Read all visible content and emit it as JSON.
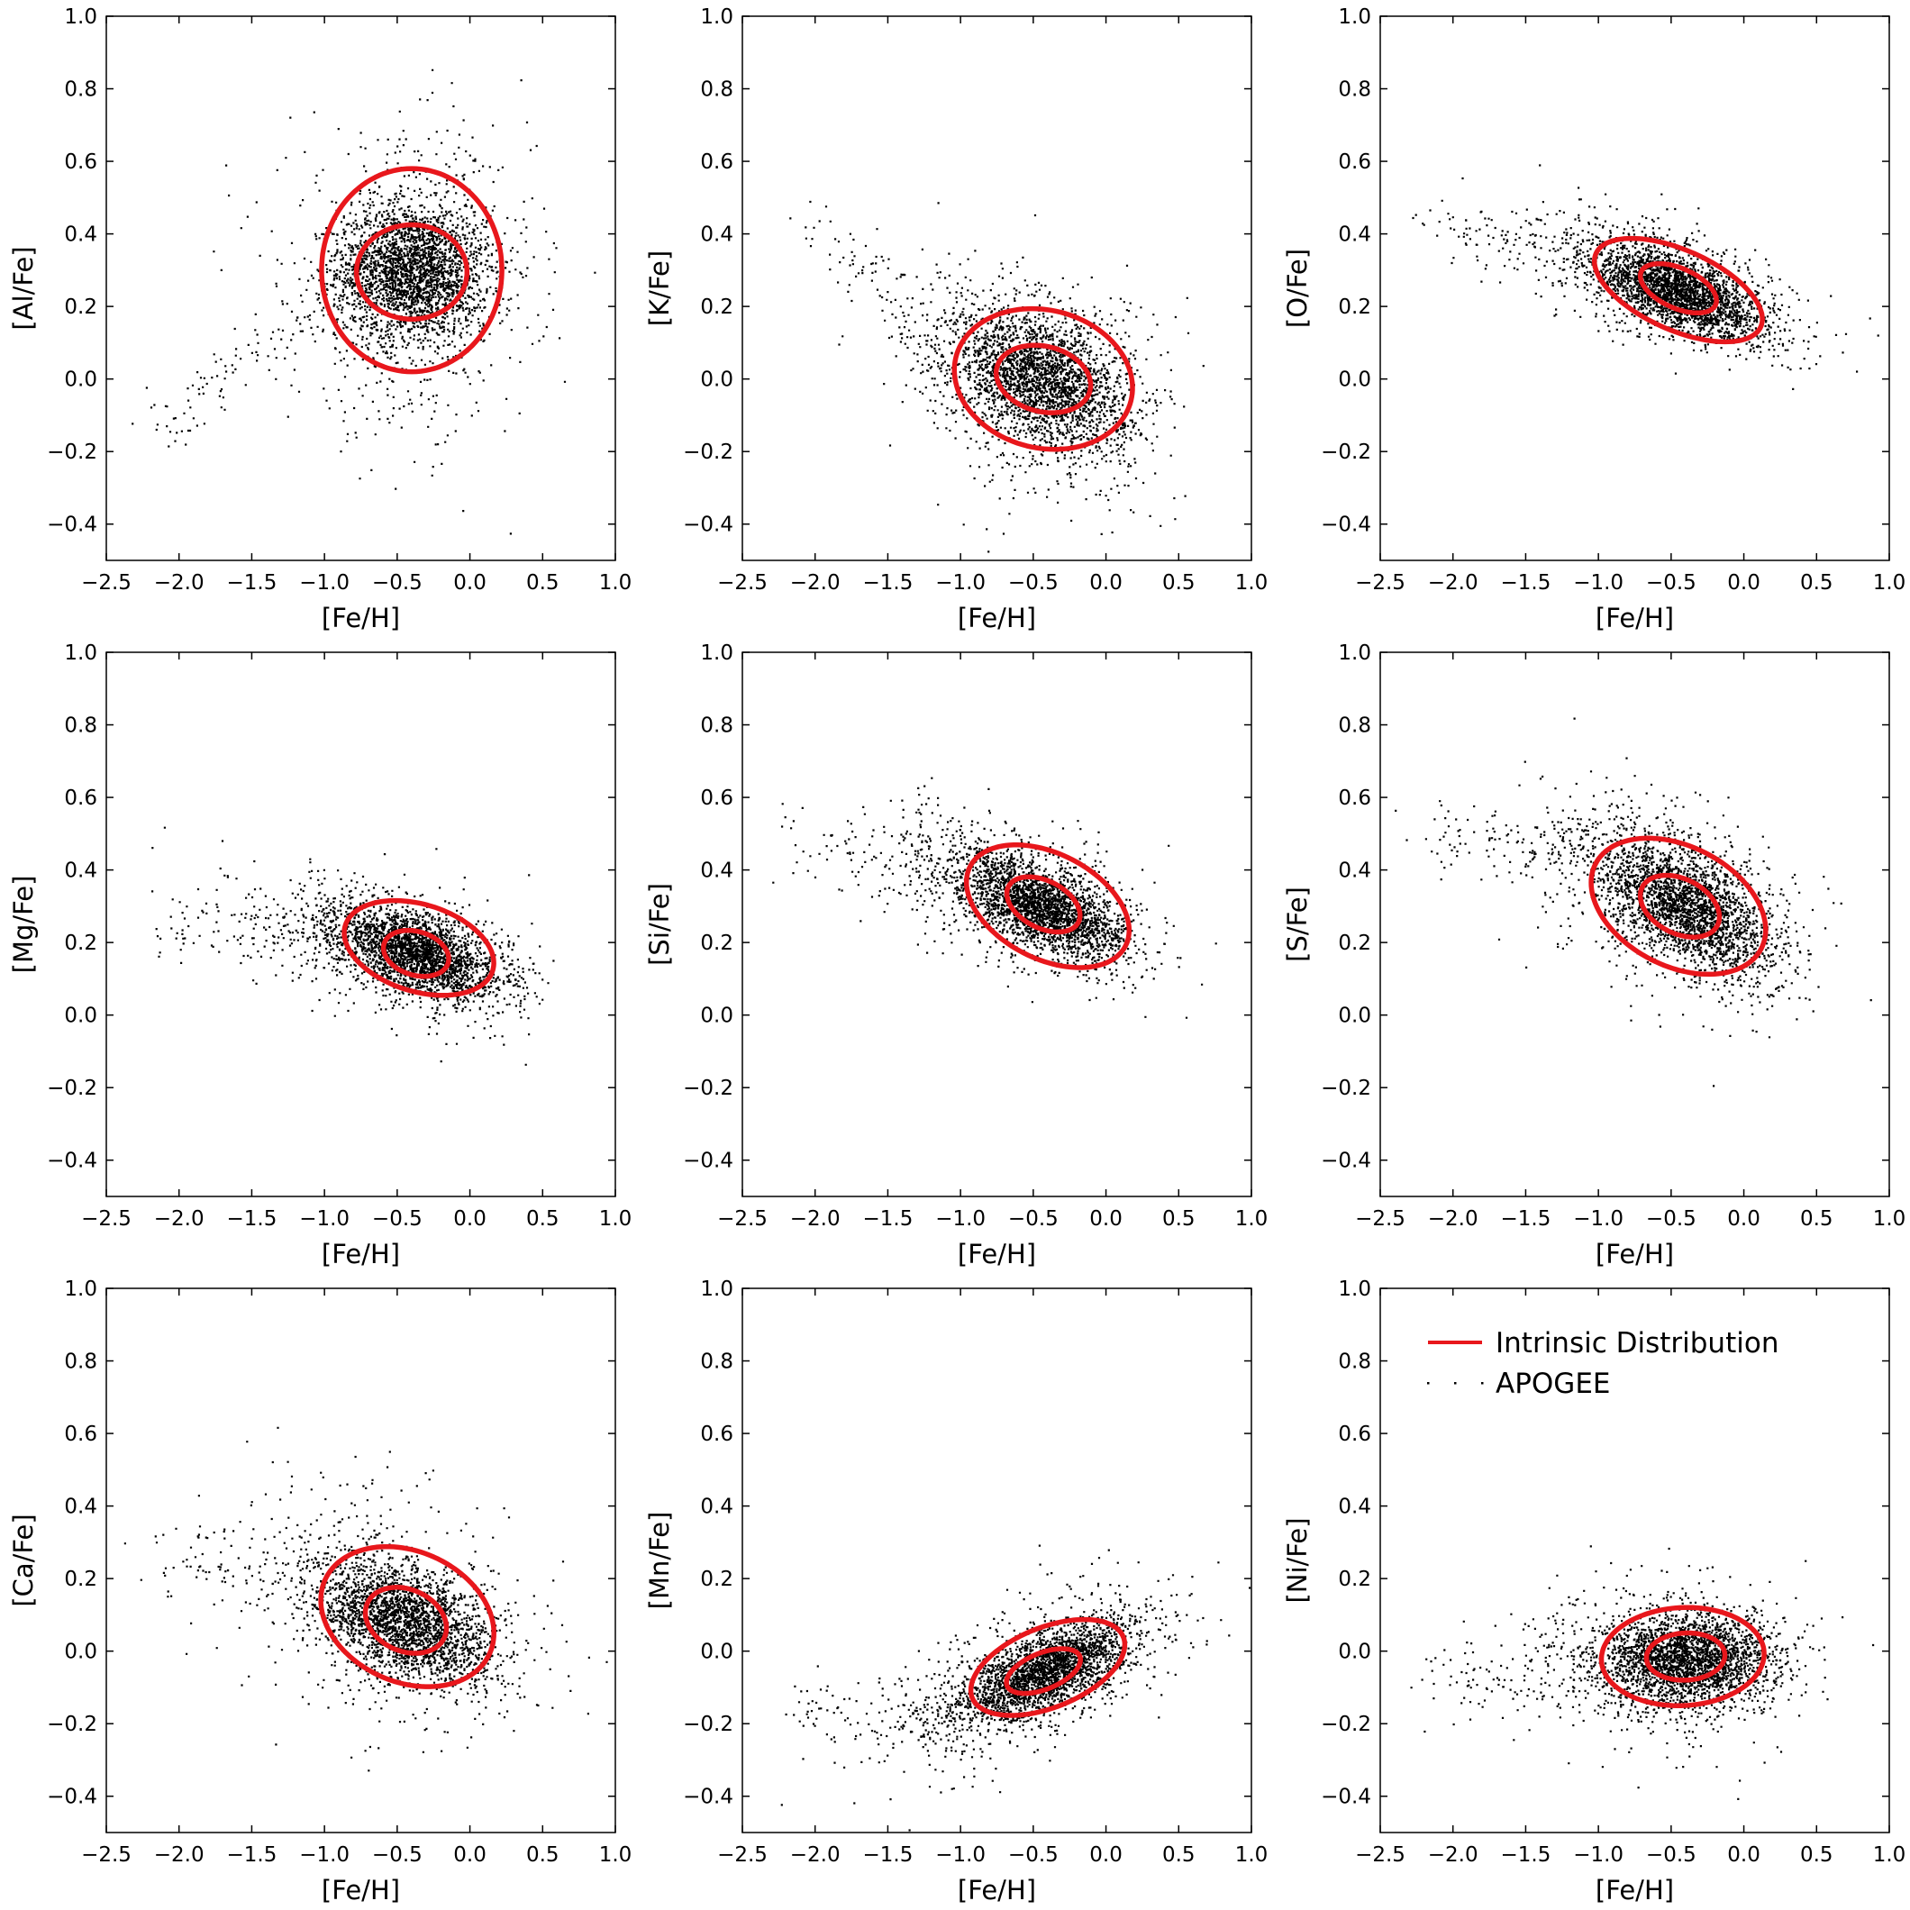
{
  "colors": {
    "contour": "#e8171c",
    "points": "#000000",
    "frame": "#000000"
  },
  "legend": {
    "line_label": "Intrinsic Distribution",
    "points_label": "APOGEE",
    "placement": "upper"
  },
  "chart_data": [
    {
      "type": "scatter",
      "title": "",
      "xlabel": "[Fe/H]",
      "ylabel": "[Al/Fe]",
      "xlim": [
        -2.5,
        1.0
      ],
      "ylim": [
        -0.5,
        1.0
      ],
      "xticks": [
        "−2.5",
        "−2.0",
        "−1.5",
        "−1.0",
        "−0.5",
        "0.0",
        "0.5",
        "1.0"
      ],
      "yticks": [
        "−0.4",
        "−0.2",
        "0.0",
        "0.2",
        "0.4",
        "0.6",
        "0.8",
        "1.0"
      ],
      "points": {
        "n": 3200,
        "core": {
          "mean": [
            -0.4,
            0.3
          ],
          "sd": [
            0.26,
            0.09
          ],
          "corr": 0.0
        },
        "halo": {
          "mean": [
            -0.42,
            0.26
          ],
          "sd": [
            0.42,
            0.2
          ],
          "corr": 0.0
        },
        "tail": {
          "from": [
            -2.2,
            -0.15
          ],
          "to": [
            -0.9,
            0.25
          ]
        }
      },
      "contours": [
        {
          "center": [
            -0.4,
            0.3
          ],
          "semi_axes": [
            0.62,
            0.28
          ],
          "angle_deg": 0
        },
        {
          "center": [
            -0.4,
            0.295
          ],
          "semi_axes": [
            0.38,
            0.13
          ],
          "angle_deg": 0
        }
      ]
    },
    {
      "type": "scatter",
      "title": "",
      "xlabel": "[Fe/H]",
      "ylabel": "[K/Fe]",
      "xlim": [
        -2.5,
        1.0
      ],
      "ylim": [
        -0.5,
        1.0
      ],
      "xticks": [
        "−2.5",
        "−2.0",
        "−1.5",
        "−1.0",
        "−0.5",
        "0.0",
        "0.5",
        "1.0"
      ],
      "yticks": [
        "−0.4",
        "−0.2",
        "0.0",
        "0.2",
        "0.4",
        "0.6",
        "0.8",
        "1.0"
      ],
      "points": {
        "n": 3000,
        "core": {
          "mean": [
            -0.45,
            0.0
          ],
          "sd": [
            0.3,
            0.09
          ],
          "corr": -0.35
        },
        "halo": {
          "mean": [
            -0.5,
            0.0
          ],
          "sd": [
            0.45,
            0.17
          ],
          "corr": -0.3
        },
        "tail": {
          "from": [
            -2.1,
            0.45
          ],
          "to": [
            -1.0,
            0.05
          ]
        }
      },
      "contours": [
        {
          "center": [
            -0.43,
            0.0
          ],
          "semi_axes": [
            0.62,
            0.19
          ],
          "angle_deg": -14
        },
        {
          "center": [
            -0.43,
            0.0
          ],
          "semi_axes": [
            0.33,
            0.09
          ],
          "angle_deg": -14
        }
      ]
    },
    {
      "type": "scatter",
      "title": "",
      "xlabel": "[Fe/H]",
      "ylabel": "[O/Fe]",
      "xlim": [
        -2.5,
        1.0
      ],
      "ylim": [
        -0.5,
        1.0
      ],
      "xticks": [
        "−2.5",
        "−2.0",
        "−1.5",
        "−1.0",
        "−0.5",
        "0.0",
        "0.5",
        "1.0"
      ],
      "yticks": [
        "−0.4",
        "−0.2",
        "0.0",
        "0.2",
        "0.4",
        "0.6",
        "0.8",
        "1.0"
      ],
      "points": {
        "n": 3000,
        "core": {
          "mean": [
            -0.45,
            0.24
          ],
          "sd": [
            0.28,
            0.06
          ],
          "corr": -0.6
        },
        "halo": {
          "mean": [
            -0.55,
            0.27
          ],
          "sd": [
            0.45,
            0.1
          ],
          "corr": -0.55
        },
        "tail": {
          "from": [
            -2.2,
            0.42
          ],
          "to": [
            -1.1,
            0.33
          ]
        }
      },
      "contours": [
        {
          "center": [
            -0.45,
            0.245
          ],
          "semi_axes": [
            0.62,
            0.11
          ],
          "angle_deg": -24
        },
        {
          "center": [
            -0.45,
            0.25
          ],
          "semi_axes": [
            0.28,
            0.055
          ],
          "angle_deg": -24
        }
      ]
    },
    {
      "type": "scatter",
      "title": "",
      "xlabel": "[Fe/H]",
      "ylabel": "[Mg/Fe]",
      "xlim": [
        -2.5,
        1.0
      ],
      "ylim": [
        -0.5,
        1.0
      ],
      "xticks": [
        "−2.5",
        "−2.0",
        "−1.5",
        "−1.0",
        "−0.5",
        "0.0",
        "0.5",
        "1.0"
      ],
      "yticks": [
        "−0.4",
        "−0.2",
        "0.0",
        "0.2",
        "0.4",
        "0.6",
        "0.8",
        "1.0"
      ],
      "points": {
        "n": 3000,
        "core": {
          "mean": [
            -0.35,
            0.17
          ],
          "sd": [
            0.28,
            0.06
          ],
          "corr": -0.5
        },
        "halo": {
          "mean": [
            -0.55,
            0.19
          ],
          "sd": [
            0.45,
            0.1
          ],
          "corr": -0.4
        },
        "tail": {
          "from": [
            -2.2,
            0.25
          ],
          "to": [
            -1.0,
            0.22
          ]
        }
      },
      "contours": [
        {
          "center": [
            -0.35,
            0.185
          ],
          "semi_axes": [
            0.53,
            0.12
          ],
          "angle_deg": -17
        },
        {
          "center": [
            -0.37,
            0.17
          ],
          "semi_axes": [
            0.23,
            0.06
          ],
          "angle_deg": -17
        }
      ]
    },
    {
      "type": "scatter",
      "title": "",
      "xlabel": "[Fe/H]",
      "ylabel": "[Si/Fe]",
      "xlim": [
        -2.5,
        1.0
      ],
      "ylim": [
        -0.5,
        1.0
      ],
      "xticks": [
        "−2.5",
        "−2.0",
        "−1.5",
        "−1.0",
        "−0.5",
        "0.0",
        "0.5",
        "1.0"
      ],
      "yticks": [
        "−0.4",
        "−0.2",
        "0.0",
        "0.2",
        "0.4",
        "0.6",
        "0.8",
        "1.0"
      ],
      "points": {
        "n": 3000,
        "core": {
          "mean": [
            -0.45,
            0.3
          ],
          "sd": [
            0.28,
            0.07
          ],
          "corr": -0.6
        },
        "halo": {
          "mean": [
            -0.6,
            0.33
          ],
          "sd": [
            0.45,
            0.12
          ],
          "corr": -0.5
        },
        "tail": {
          "from": [
            -2.2,
            0.47
          ],
          "to": [
            -1.1,
            0.42
          ]
        }
      },
      "contours": [
        {
          "center": [
            -0.4,
            0.3
          ],
          "semi_axes": [
            0.6,
            0.145
          ],
          "angle_deg": -27
        },
        {
          "center": [
            -0.43,
            0.305
          ],
          "semi_axes": [
            0.27,
            0.065
          ],
          "angle_deg": -27
        }
      ]
    },
    {
      "type": "scatter",
      "title": "",
      "xlabel": "[Fe/H]",
      "ylabel": "[S/Fe]",
      "xlim": [
        -2.5,
        1.0
      ],
      "ylim": [
        -0.5,
        1.0
      ],
      "xticks": [
        "−2.5",
        "−2.0",
        "−1.5",
        "−1.0",
        "−0.5",
        "0.0",
        "0.5",
        "1.0"
      ],
      "yticks": [
        "−0.4",
        "−0.2",
        "0.0",
        "0.2",
        "0.4",
        "0.6",
        "0.8",
        "1.0"
      ],
      "points": {
        "n": 3000,
        "core": {
          "mean": [
            -0.4,
            0.3
          ],
          "sd": [
            0.3,
            0.09
          ],
          "corr": -0.55
        },
        "halo": {
          "mean": [
            -0.55,
            0.33
          ],
          "sd": [
            0.45,
            0.15
          ],
          "corr": -0.45
        },
        "tail": {
          "from": [
            -2.2,
            0.5
          ],
          "to": [
            -1.2,
            0.45
          ]
        }
      },
      "contours": [
        {
          "center": [
            -0.45,
            0.3
          ],
          "semi_axes": [
            0.64,
            0.165
          ],
          "angle_deg": -27
        },
        {
          "center": [
            -0.44,
            0.3
          ],
          "semi_axes": [
            0.29,
            0.075
          ],
          "angle_deg": -27
        }
      ]
    },
    {
      "type": "scatter",
      "title": "",
      "xlabel": "[Fe/H]",
      "ylabel": "[Ca/Fe]",
      "xlim": [
        -2.5,
        1.0
      ],
      "ylim": [
        -0.5,
        1.0
      ],
      "xticks": [
        "−2.5",
        "−2.0",
        "−1.5",
        "−1.0",
        "−0.5",
        "0.0",
        "0.5",
        "1.0"
      ],
      "yticks": [
        "−0.4",
        "−0.2",
        "0.0",
        "0.2",
        "0.4",
        "0.6",
        "0.8",
        "1.0"
      ],
      "points": {
        "n": 3000,
        "core": {
          "mean": [
            -0.45,
            0.08
          ],
          "sd": [
            0.3,
            0.08
          ],
          "corr": -0.45
        },
        "halo": {
          "mean": [
            -0.55,
            0.12
          ],
          "sd": [
            0.45,
            0.16
          ],
          "corr": -0.3
        },
        "tail": {
          "from": [
            -2.2,
            0.25
          ],
          "to": [
            -1.1,
            0.2
          ]
        }
      },
      "contours": [
        {
          "center": [
            -0.43,
            0.095
          ],
          "semi_axes": [
            0.62,
            0.18
          ],
          "angle_deg": -24
        },
        {
          "center": [
            -0.44,
            0.085
          ],
          "semi_axes": [
            0.29,
            0.085
          ],
          "angle_deg": -24
        }
      ]
    },
    {
      "type": "scatter",
      "title": "",
      "xlabel": "[Fe/H]",
      "ylabel": "[Mn/Fe]",
      "xlim": [
        -2.5,
        1.0
      ],
      "ylim": [
        -0.5,
        1.0
      ],
      "xticks": [
        "−2.5",
        "−2.0",
        "−1.5",
        "−1.0",
        "−0.5",
        "0.0",
        "0.5",
        "1.0"
      ],
      "yticks": [
        "−0.4",
        "−0.2",
        "0.0",
        "0.2",
        "0.4",
        "0.6",
        "0.8",
        "1.0"
      ],
      "points": {
        "n": 3000,
        "core": {
          "mean": [
            -0.4,
            -0.05
          ],
          "sd": [
            0.3,
            0.07
          ],
          "corr": 0.65
        },
        "halo": {
          "mean": [
            -0.55,
            -0.08
          ],
          "sd": [
            0.45,
            0.12
          ],
          "corr": 0.55
        },
        "tail": {
          "from": [
            -2.2,
            -0.15
          ],
          "to": [
            -1.1,
            -0.2
          ]
        }
      },
      "contours": [
        {
          "center": [
            -0.4,
            -0.045
          ],
          "semi_axes": [
            0.56,
            0.11
          ],
          "angle_deg": 22
        },
        {
          "center": [
            -0.43,
            -0.055
          ],
          "semi_axes": [
            0.27,
            0.05
          ],
          "angle_deg": 22
        }
      ]
    },
    {
      "type": "scatter",
      "title": "",
      "xlabel": "[Fe/H]",
      "ylabel": "[Ni/Fe]",
      "xlim": [
        -2.5,
        1.0
      ],
      "ylim": [
        -0.5,
        1.0
      ],
      "xticks": [
        "−2.5",
        "−2.0",
        "−1.5",
        "−1.0",
        "−0.5",
        "0.0",
        "0.5",
        "1.0"
      ],
      "yticks": [
        "−0.4",
        "−0.2",
        "0.0",
        "0.2",
        "0.4",
        "0.6",
        "0.8",
        "1.0"
      ],
      "points": {
        "n": 3000,
        "core": {
          "mean": [
            -0.4,
            -0.02
          ],
          "sd": [
            0.3,
            0.06
          ],
          "corr": 0.05
        },
        "halo": {
          "mean": [
            -0.55,
            -0.02
          ],
          "sd": [
            0.45,
            0.11
          ],
          "corr": 0.0
        },
        "tail": {
          "from": [
            -2.2,
            -0.08
          ],
          "to": [
            -1.2,
            -0.05
          ]
        }
      },
      "contours": [
        {
          "center": [
            -0.42,
            -0.015
          ],
          "semi_axes": [
            0.56,
            0.135
          ],
          "angle_deg": 3
        },
        {
          "center": [
            -0.4,
            -0.015
          ],
          "semi_axes": [
            0.27,
            0.065
          ],
          "angle_deg": 3
        }
      ]
    }
  ]
}
